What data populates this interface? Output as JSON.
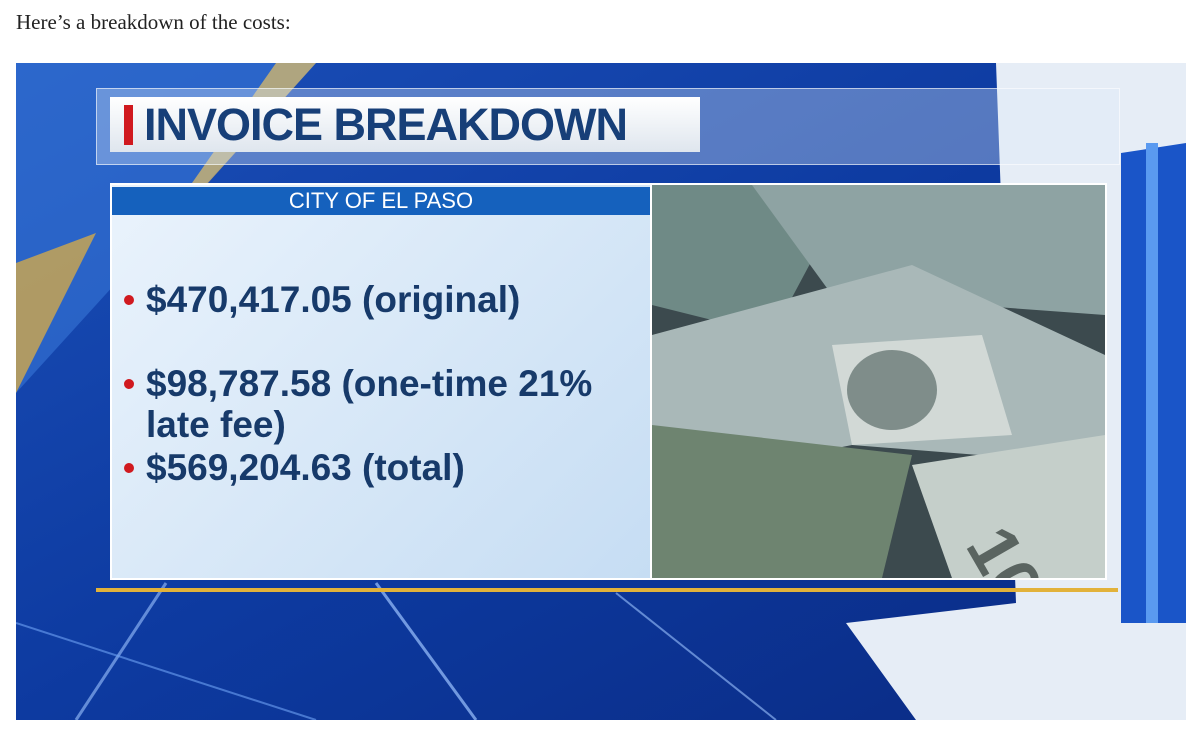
{
  "intro": "Here’s a breakdown of the costs:",
  "graphic": {
    "title": "INVOICE BREAKDOWN",
    "subtitle": "CITY OF EL PASO",
    "items": [
      "$470,417.05 (original)",
      "$98,787.58 (one-time 21% late fee)",
      "$569,204.63 (total)"
    ]
  }
}
